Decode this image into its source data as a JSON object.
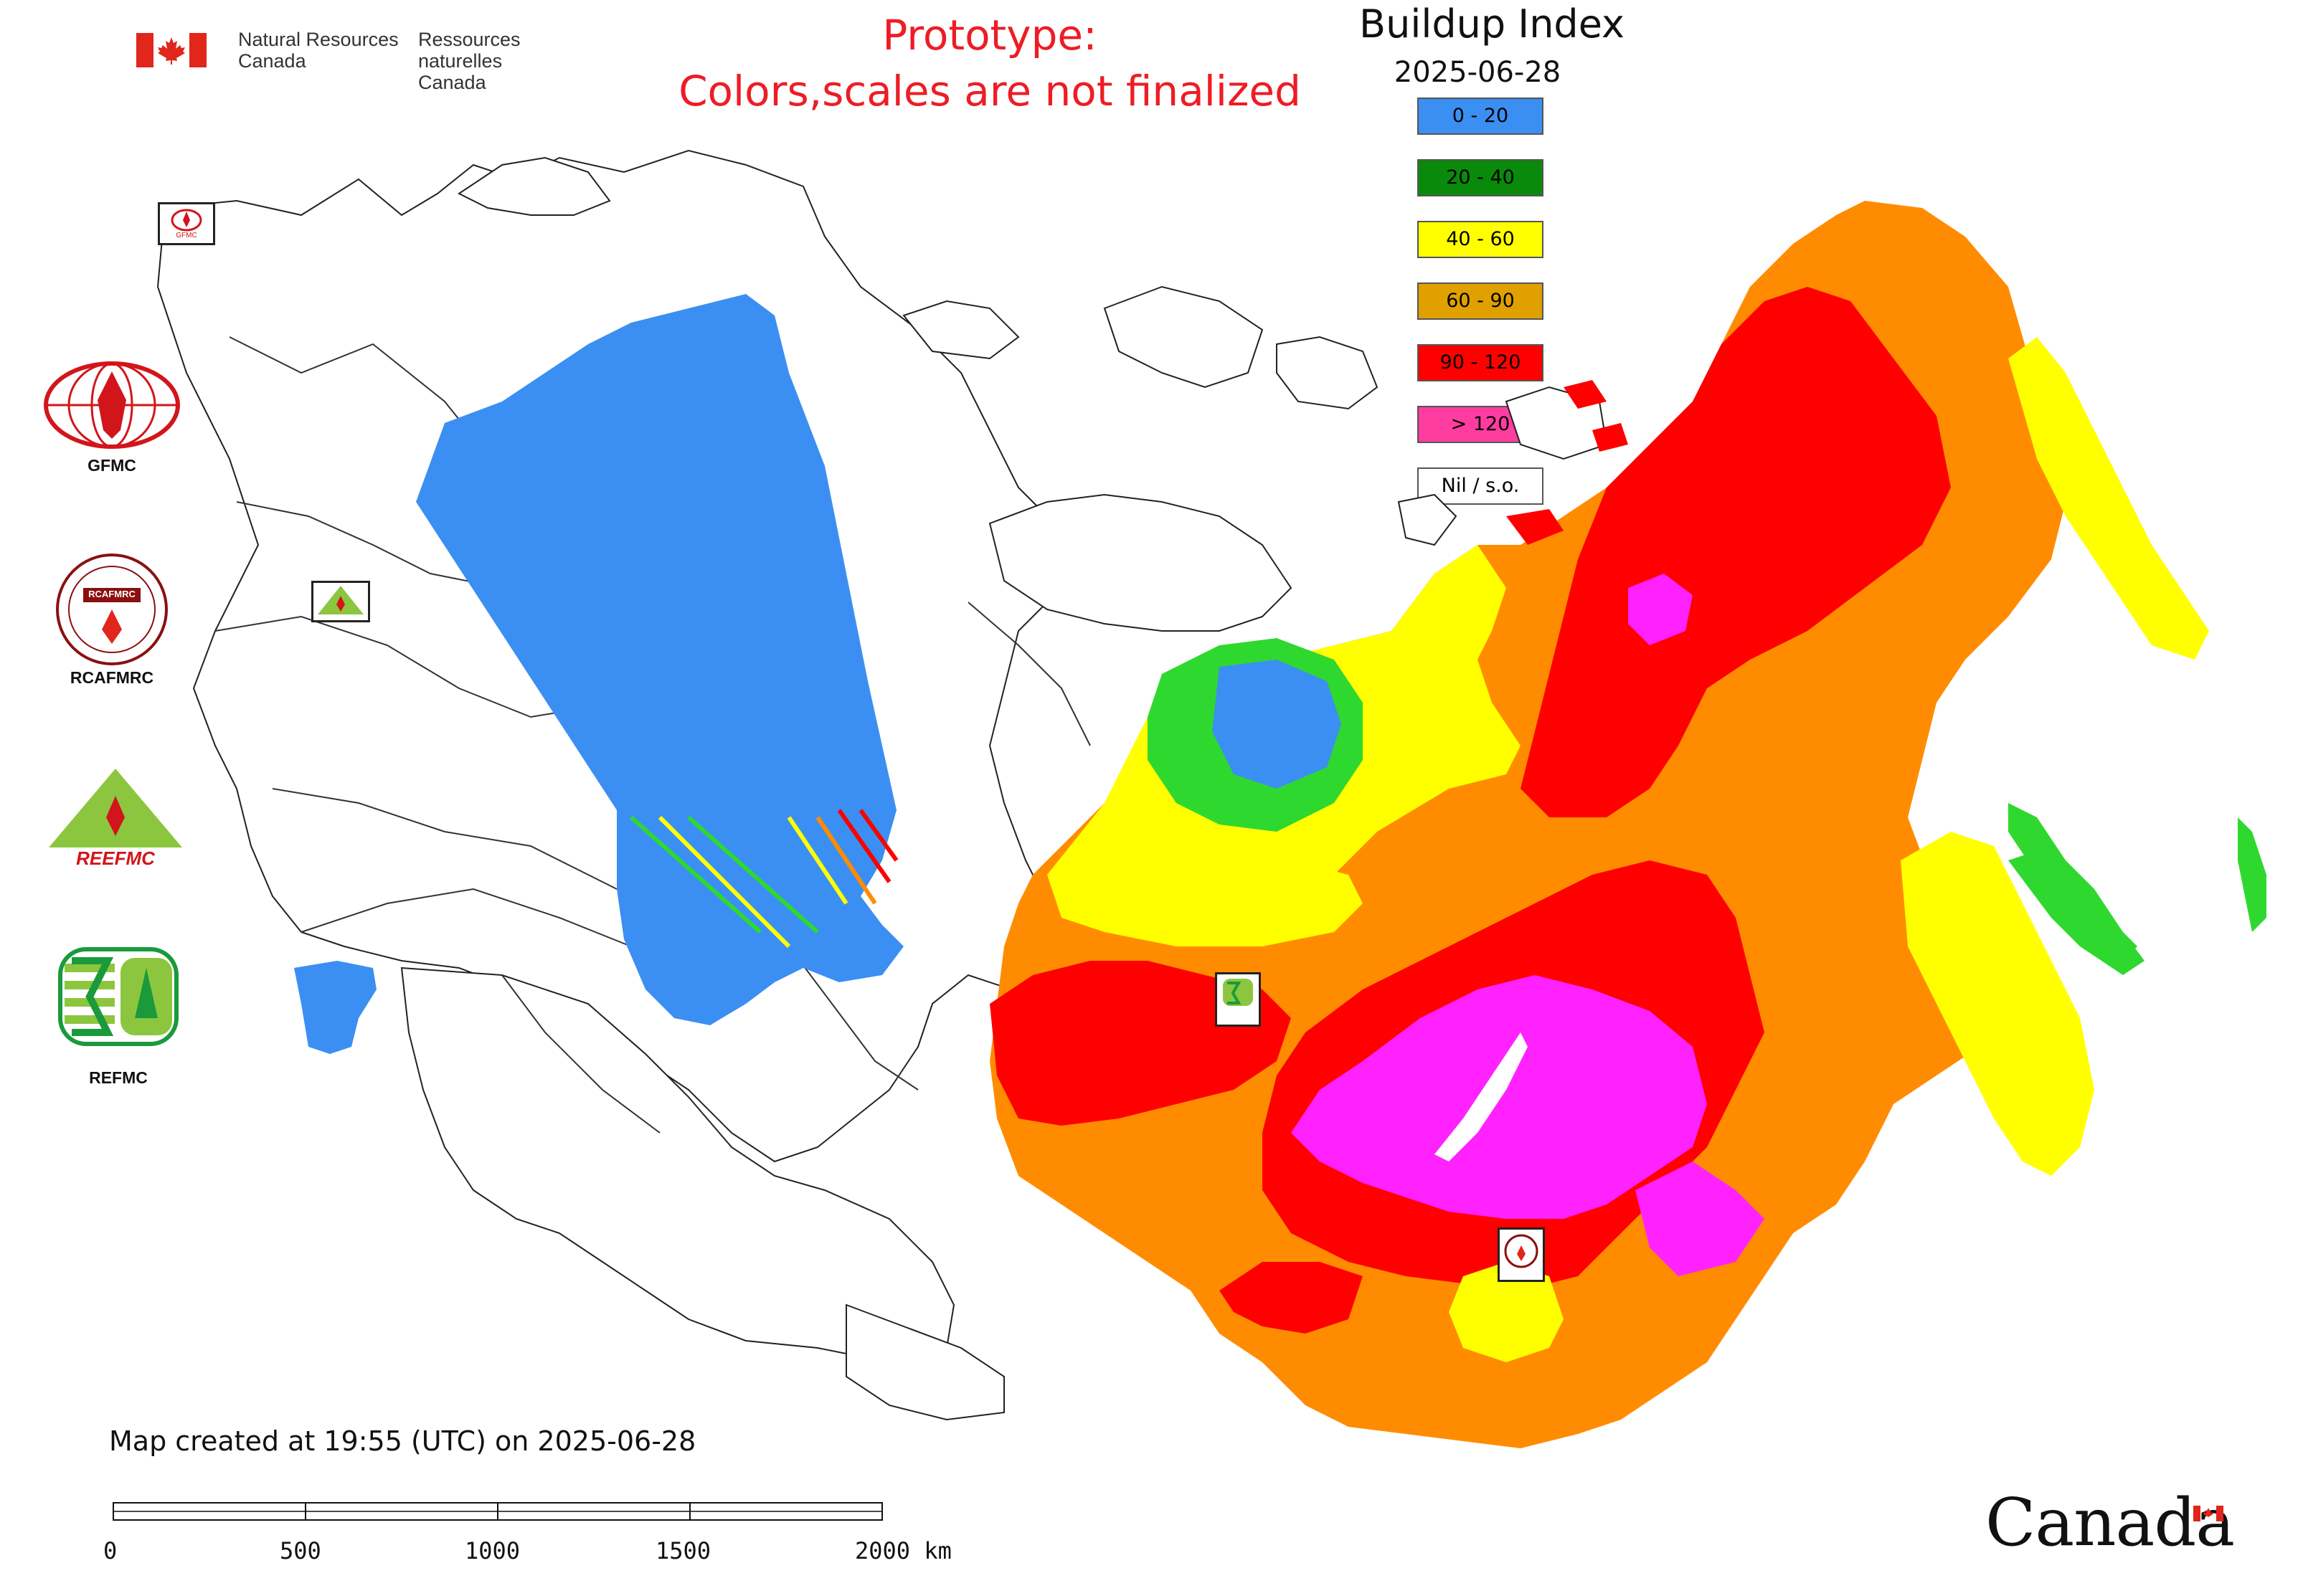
{
  "header": {
    "org_en_line1": "Natural Resources",
    "org_en_line2": "Canada",
    "org_fr_line1": "Ressources naturelles",
    "org_fr_line2": "Canada",
    "prototype_line1": "Prototype:",
    "prototype_line2": "Colors,scales are not finalized"
  },
  "map": {
    "title": "Buildup Index",
    "date": "2025-06-28",
    "legend": [
      {
        "label": "0 - 20",
        "color": "#3b8ff2"
      },
      {
        "label": "20 - 40",
        "color": "#0a8a0a"
      },
      {
        "label": "40 - 60",
        "color": "#ffff00"
      },
      {
        "label": "60 - 90",
        "color": "#e0a000"
      },
      {
        "label": "90 - 120",
        "color": "#ff0000"
      },
      {
        "label": "> 120",
        "color": "#ff3ca0"
      },
      {
        "label": "Nil / s.o.",
        "color": "#ffffff"
      }
    ],
    "data_colors": {
      "blue": "#3b8ff2",
      "green": "#2fd82f",
      "yellow": "#ffff00",
      "orange": "#ff8c00",
      "red": "#ff0000",
      "magenta": "#ff22ff"
    }
  },
  "orgs": {
    "gfmc": "GFMC",
    "rcafmrc": "RCAFMRC",
    "reefmc_logo": "REEFMC",
    "refmc": "REFMC",
    "rcafmrc_logo_text": "RCAFMRC",
    "map_badge_small": "GFMC"
  },
  "footer": {
    "created": "Map created at 19:55 (UTC) on 2025-06-28",
    "scale_labels": [
      "0",
      "500",
      "1000",
      "1500",
      "2000 km"
    ],
    "wordmark": "Canada"
  }
}
